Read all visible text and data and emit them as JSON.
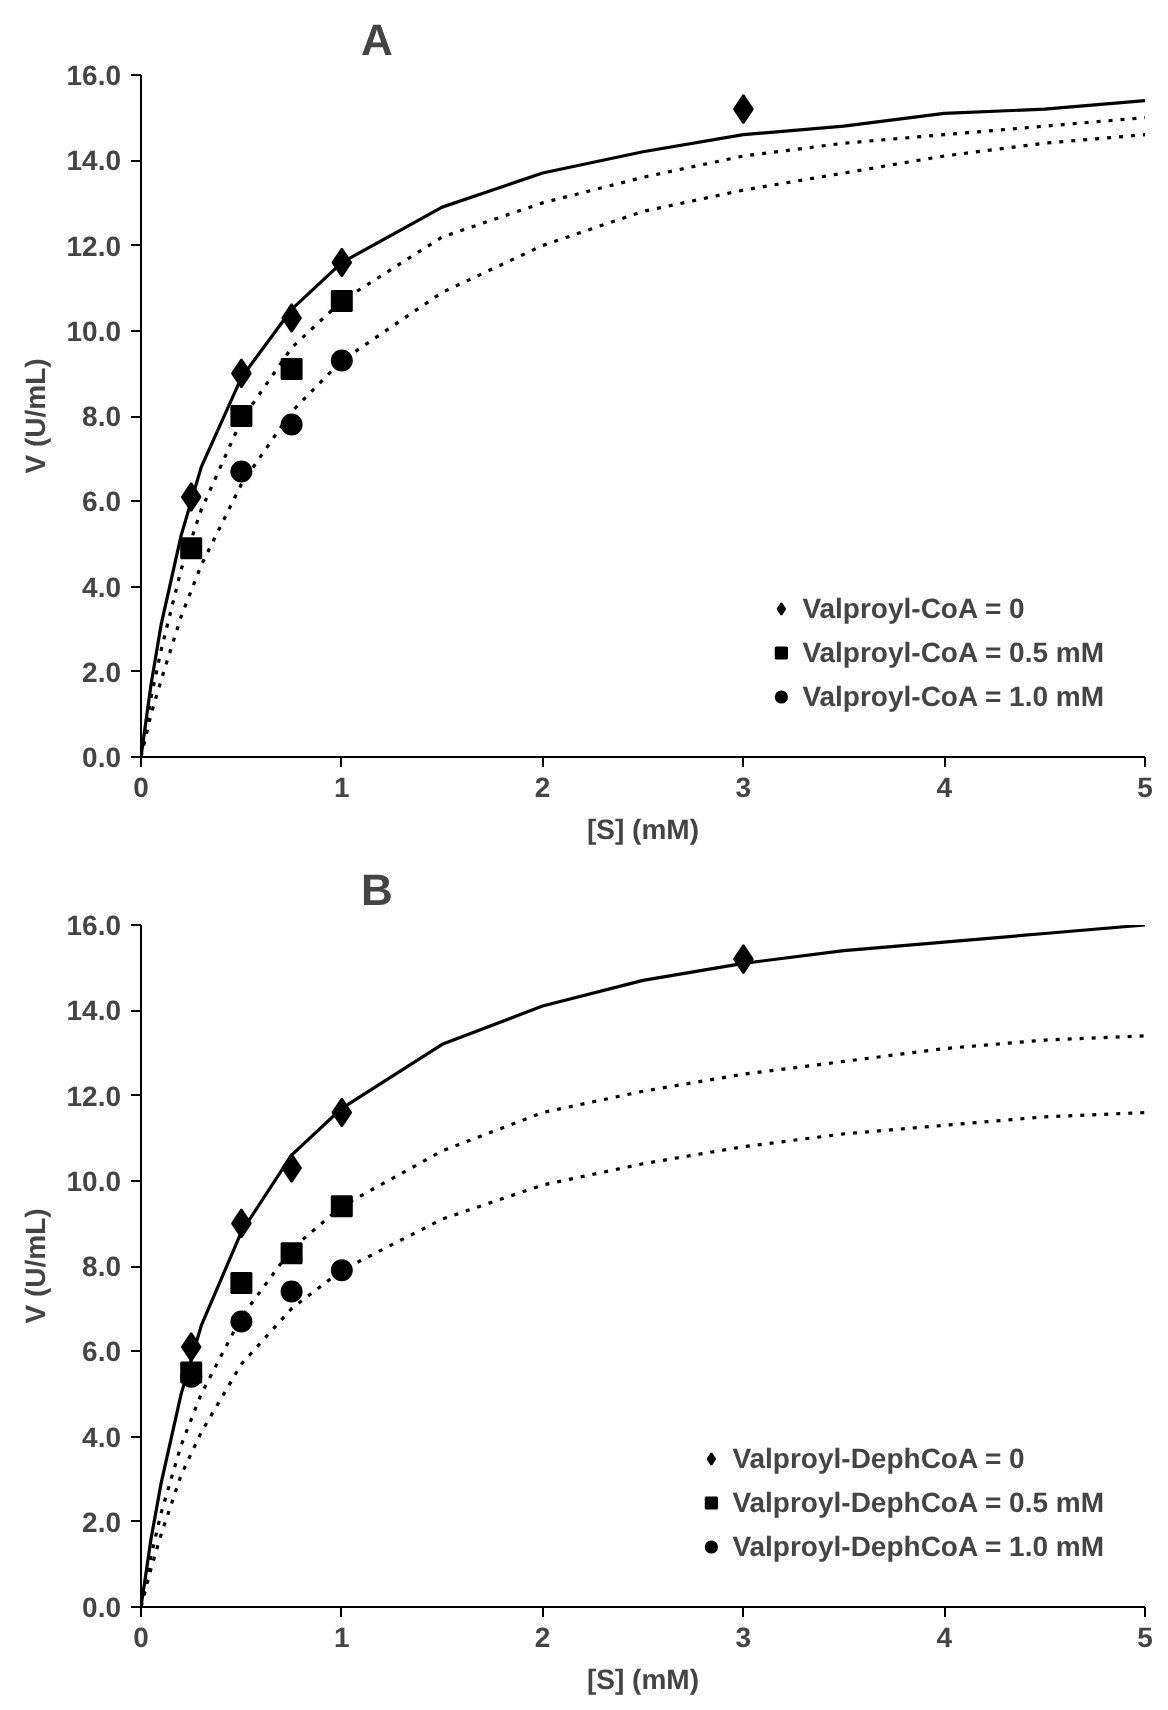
{
  "chart_data": [
    {
      "type": "scatter",
      "title": "A",
      "xlabel": "[S] (mM)",
      "ylabel": "V (U/mL)",
      "xlim": [
        0,
        5
      ],
      "xticks": [
        0,
        1,
        2,
        3,
        4,
        5
      ],
      "ylim": [
        0,
        16
      ],
      "yticks": [
        {
          "value": 0,
          "label": "0.0"
        },
        {
          "value": 2,
          "label": "2.0"
        },
        {
          "value": 4,
          "label": "4.0"
        },
        {
          "value": 6,
          "label": "6.0"
        },
        {
          "value": 8,
          "label": "8.0"
        },
        {
          "value": 10,
          "label": "10.0"
        },
        {
          "value": 12,
          "label": "12.0"
        },
        {
          "value": 14,
          "label": "14.0"
        },
        {
          "value": 16,
          "label": "16.0"
        }
      ],
      "grid": false,
      "legend": "bottom right",
      "series": [
        {
          "name": "Valproyl-CoA = 0",
          "color": "#000000",
          "marker": "diamond",
          "x": [
            0.25,
            0.5,
            0.75,
            1,
            3
          ],
          "values": [
            6.1,
            9.0,
            10.3,
            11.6,
            15.2
          ]
        },
        {
          "name": "Valproyl-CoA = 0.5 mM",
          "color": "#000000",
          "marker": "square",
          "x": [
            0.25,
            0.5,
            0.75,
            1
          ],
          "values": [
            4.9,
            8.0,
            9.1,
            10.7
          ]
        },
        {
          "name": "Valproyl-CoA = 1.0 mM",
          "color": "#000000",
          "marker": "circle",
          "x": [
            0.5,
            0.75,
            1
          ],
          "values": [
            6.7,
            7.8,
            9.3
          ]
        },
        {
          "type": "line",
          "color": "#000000",
          "line_style": "solid",
          "marker": "none",
          "x": [
            0,
            0.05,
            0.1,
            0.2,
            0.3,
            0.5,
            0.75,
            1,
            1.5,
            2,
            2.5,
            3,
            3.5,
            4,
            4.5,
            5
          ],
          "values": [
            0,
            1.7,
            3.1,
            5.2,
            6.8,
            8.9,
            10.5,
            11.6,
            12.9,
            13.7,
            14.2,
            14.6,
            14.8,
            15.1,
            15.2,
            15.4
          ]
        },
        {
          "type": "line",
          "color": "#000000",
          "line_style": "dotted",
          "marker": "none",
          "x": [
            0,
            0.05,
            0.1,
            0.2,
            0.3,
            0.5,
            0.75,
            1,
            1.5,
            2,
            2.5,
            3,
            3.5,
            4,
            4.5,
            5
          ],
          "values": [
            0,
            1.4,
            2.5,
            4.4,
            5.8,
            7.9,
            9.6,
            10.7,
            12.2,
            13.0,
            13.6,
            14.1,
            14.4,
            14.6,
            14.8,
            15.0
          ]
        },
        {
          "type": "line",
          "color": "#000000",
          "line_style": "dotted",
          "marker": "none",
          "x": [
            0,
            0.05,
            0.1,
            0.2,
            0.3,
            0.5,
            0.75,
            1,
            1.5,
            2,
            2.5,
            3,
            3.5,
            4,
            4.5,
            5
          ],
          "values": [
            0,
            1.0,
            1.8,
            3.3,
            4.5,
            6.4,
            8.1,
            9.3,
            10.9,
            12.0,
            12.8,
            13.3,
            13.7,
            14.1,
            14.4,
            14.6
          ]
        }
      ]
    },
    {
      "type": "scatter",
      "title": "B",
      "xlabel": "[S] (mM)",
      "ylabel": "V (U/mL)",
      "xlim": [
        0,
        5
      ],
      "xticks": [
        0,
        1,
        2,
        3,
        4,
        5
      ],
      "ylim": [
        0,
        16
      ],
      "yticks": [
        {
          "value": 0,
          "label": "0.0"
        },
        {
          "value": 2,
          "label": "2.0"
        },
        {
          "value": 4,
          "label": "4.0"
        },
        {
          "value": 6,
          "label": "6.0"
        },
        {
          "value": 8,
          "label": "8.0"
        },
        {
          "value": 10,
          "label": "10.0"
        },
        {
          "value": 12,
          "label": "12.0"
        },
        {
          "value": 14,
          "label": "14.0"
        },
        {
          "value": 16,
          "label": "16.0"
        }
      ],
      "grid": false,
      "legend": "bottom right",
      "series": [
        {
          "name": "Valproyl-DephCoA = 0",
          "color": "#000000",
          "marker": "diamond",
          "x": [
            0.25,
            0.5,
            0.75,
            1,
            3
          ],
          "values": [
            6.1,
            9.0,
            10.3,
            11.6,
            15.2
          ]
        },
        {
          "name": "Valproyl-DephCoA = 0.5 mM",
          "color": "#000000",
          "marker": "square",
          "x": [
            0.25,
            0.5,
            0.75,
            1
          ],
          "values": [
            5.5,
            7.6,
            8.3,
            9.4
          ]
        },
        {
          "name": "Valproyl-DephCoA = 1.0 mM",
          "color": "#000000",
          "marker": "circle",
          "x": [
            0.25,
            0.5,
            0.75,
            1
          ],
          "values": [
            5.4,
            6.7,
            7.4,
            7.9
          ]
        },
        {
          "type": "line",
          "color": "#000000",
          "line_style": "solid",
          "marker": "none",
          "x": [
            0,
            0.05,
            0.1,
            0.2,
            0.3,
            0.5,
            0.75,
            1,
            1.5,
            2,
            2.5,
            3,
            3.5,
            4,
            4.5,
            5
          ],
          "values": [
            0,
            1.6,
            2.9,
            5.0,
            6.6,
            8.8,
            10.6,
            11.7,
            13.2,
            14.1,
            14.7,
            15.1,
            15.4,
            15.6,
            15.8,
            16.0
          ]
        },
        {
          "type": "line",
          "color": "#000000",
          "line_style": "dotted",
          "marker": "none",
          "x": [
            0,
            0.05,
            0.1,
            0.2,
            0.3,
            0.5,
            0.75,
            1,
            1.5,
            2,
            2.5,
            3,
            3.5,
            4,
            4.5,
            5
          ],
          "values": [
            0,
            1.2,
            2.2,
            3.8,
            5.0,
            6.8,
            8.4,
            9.4,
            10.7,
            11.6,
            12.1,
            12.5,
            12.8,
            13.1,
            13.3,
            13.4
          ]
        },
        {
          "type": "line",
          "color": "#000000",
          "line_style": "dotted",
          "marker": "none",
          "x": [
            0,
            0.05,
            0.1,
            0.2,
            0.3,
            0.5,
            0.75,
            1,
            1.5,
            2,
            2.5,
            3,
            3.5,
            4,
            4.5,
            5
          ],
          "values": [
            0,
            0.9,
            1.7,
            3.1,
            4.1,
            5.7,
            7.0,
            7.9,
            9.1,
            9.9,
            10.4,
            10.8,
            11.1,
            11.3,
            11.5,
            11.6
          ]
        }
      ]
    }
  ]
}
